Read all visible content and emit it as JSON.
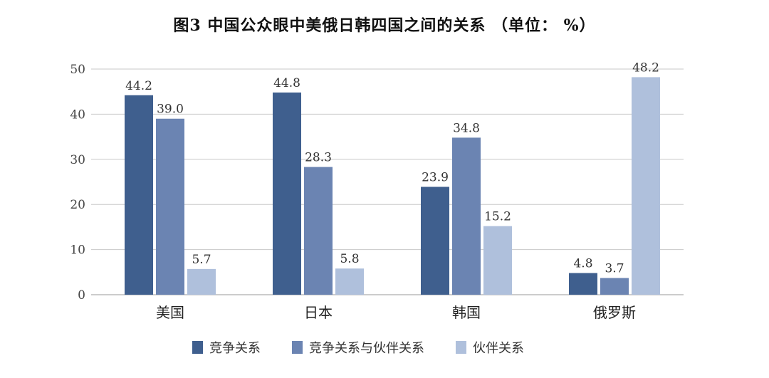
{
  "chart_data": {
    "type": "bar",
    "title": "图3 中国公众眼中美俄日韩四国之间的关系 （单位： %）",
    "categories": [
      "美国",
      "日本",
      "韩国",
      "俄罗斯"
    ],
    "series": [
      {
        "name": "竞争关系",
        "values": [
          44.2,
          44.8,
          23.9,
          4.8
        ],
        "color": "#3f5f8e",
        "labels": [
          "44.2",
          "44.8",
          "23.9",
          "4.8"
        ]
      },
      {
        "name": "竞争关系与伙伴关系",
        "values": [
          39.0,
          28.3,
          34.8,
          3.7
        ],
        "color": "#6b84b2",
        "labels": [
          "39.0",
          "28.3",
          "34.8",
          "3.7"
        ]
      },
      {
        "name": "伙伴关系",
        "values": [
          5.7,
          5.8,
          15.2,
          48.2
        ],
        "color": "#afc0dc",
        "labels": [
          "5.7",
          "5.8",
          "15.2",
          "48.2"
        ]
      }
    ],
    "yticks": [
      "0",
      "10",
      "20",
      "30",
      "40",
      "50"
    ],
    "ylim": [
      0,
      50
    ],
    "grid": true,
    "legend": "bottom"
  }
}
